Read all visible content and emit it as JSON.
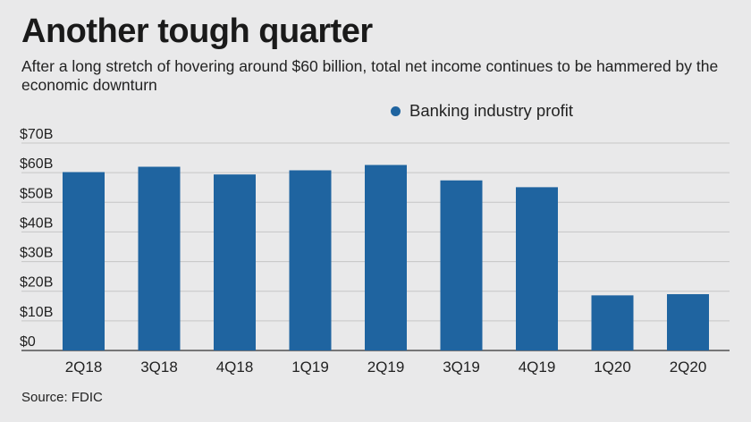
{
  "header": {
    "title": "Another tough quarter",
    "subtitle": "After a long stretch of hovering around $60 billion, total net income continues to be hammered by the economic downturn"
  },
  "legend": {
    "label": "Banking industry profit"
  },
  "footer": {
    "source": "Source: FDIC"
  },
  "colors": {
    "bar": "#1f64a0",
    "grid": "#c6c6c6",
    "baseline": "#333333"
  },
  "chart_data": {
    "type": "bar",
    "categories": [
      "2Q18",
      "3Q18",
      "4Q18",
      "1Q19",
      "2Q19",
      "3Q19",
      "4Q19",
      "1Q20",
      "2Q20"
    ],
    "series": [
      {
        "name": "Banking industry profit",
        "values": [
          60.2,
          62.0,
          59.4,
          60.8,
          62.6,
          57.4,
          55.1,
          18.6,
          19.0
        ]
      }
    ],
    "ylim": [
      0,
      70
    ],
    "yticks": [
      0,
      10,
      20,
      30,
      40,
      50,
      60,
      70
    ],
    "ytick_labels": [
      "$0",
      "$10B",
      "$20B",
      "$30B",
      "$40B",
      "$50B",
      "$60B",
      "$70B"
    ],
    "grid": true,
    "legend_position": "top-right"
  }
}
